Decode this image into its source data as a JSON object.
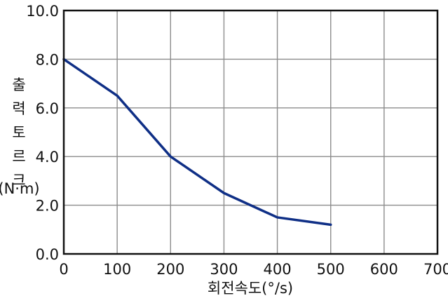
{
  "chart_data": {
    "type": "line",
    "title": "",
    "xlabel": "회전속도(°/s)",
    "ylabel": "출력토르크",
    "ylabel_unit": "(N·m)",
    "xlim": [
      0,
      700
    ],
    "ylim": [
      0,
      10
    ],
    "x_ticks": [
      0,
      100,
      200,
      300,
      400,
      500,
      600,
      700
    ],
    "y_ticks": [
      0,
      2,
      4,
      6,
      8,
      10
    ],
    "x_tick_labels": [
      "0",
      "100",
      "200",
      "300",
      "400",
      "500",
      "600",
      "700"
    ],
    "y_tick_labels": [
      "0.0",
      "2.0",
      "4.0",
      "6.0",
      "8.0",
      "10.0"
    ],
    "grid": true,
    "series": [
      {
        "color": "#0f2f86",
        "x": [
          0,
          100,
          200,
          300,
          400,
          500
        ],
        "y": [
          8.0,
          6.5,
          4.0,
          2.5,
          1.5,
          1.2
        ]
      }
    ]
  }
}
